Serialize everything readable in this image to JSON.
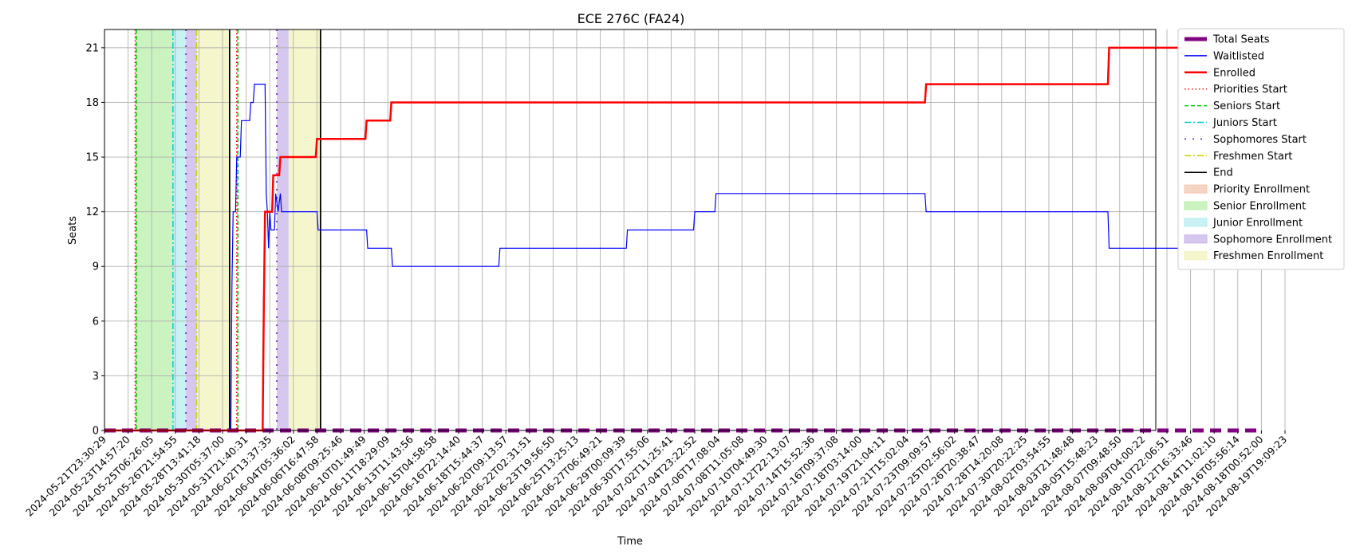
{
  "chart_data": {
    "type": "line",
    "title": "ECE 276C (FA24)",
    "xlabel": "Time",
    "ylabel": "Seats",
    "ylim": [
      0,
      22
    ],
    "yticks": [
      0,
      3,
      6,
      9,
      12,
      15,
      18,
      21
    ],
    "x_tick_labels": [
      "2024-05-21T23:30:29",
      "2024-05-23T14:57:20",
      "2024-05-25T06:26:05",
      "2024-05-26T21:54:55",
      "2024-05-28T13:41:18",
      "2024-05-30T05:37:00",
      "2024-05-31T21:40:31",
      "2024-06-02T13:37:35",
      "2024-06-04T05:36:02",
      "2024-06-06T16:47:58",
      "2024-06-08T09:25:46",
      "2024-06-10T01:49:49",
      "2024-06-11T18:29:09",
      "2024-06-13T11:43:56",
      "2024-06-15T04:58:58",
      "2024-06-16T22:14:40",
      "2024-06-18T15:44:37",
      "2024-06-20T09:13:57",
      "2024-06-22T02:31:51",
      "2024-06-23T19:56:50",
      "2024-06-25T13:25:13",
      "2024-06-27T06:49:21",
      "2024-06-29T00:09:39",
      "2024-06-30T17:55:06",
      "2024-07-02T11:25:41",
      "2024-07-04T23:22:52",
      "2024-07-06T17:08:04",
      "2024-07-08T11:05:08",
      "2024-07-10T04:49:30",
      "2024-07-12T22:13:07",
      "2024-07-14T15:52:36",
      "2024-07-16T09:37:08",
      "2024-07-18T03:14:00",
      "2024-07-19T21:04:11",
      "2024-07-21T15:02:04",
      "2024-07-23T09:09:57",
      "2024-07-25T02:56:02",
      "2024-07-26T20:38:47",
      "2024-07-28T14:20:08",
      "2024-07-30T20:22:25",
      "2024-08-02T03:54:55",
      "2024-08-03T21:48:48",
      "2024-08-05T15:48:23",
      "2024-08-07T09:48:50",
      "2024-08-09T04:00:22",
      "2024-08-10T22:06:51",
      "2024-08-12T16:33:46",
      "2024-08-14T11:02:10",
      "2024-08-16T05:56:14",
      "2024-08-18T00:52:00",
      "2024-08-19T19:09:23"
    ],
    "series": [
      {
        "name": "Total Seats",
        "color": "#800080",
        "style": "dashed-thick",
        "points": [
          [
            0,
            0
          ],
          [
            48.8,
            0
          ]
        ]
      },
      {
        "name": "Waitlisted",
        "color": "#0000ff",
        "style": "solid",
        "points": [
          [
            0,
            0
          ],
          [
            5.35,
            0
          ],
          [
            5.4,
            8
          ],
          [
            5.45,
            12
          ],
          [
            5.55,
            12
          ],
          [
            5.6,
            15
          ],
          [
            5.75,
            15
          ],
          [
            5.8,
            17
          ],
          [
            6.15,
            17
          ],
          [
            6.2,
            18
          ],
          [
            6.3,
            18
          ],
          [
            6.35,
            19
          ],
          [
            6.8,
            19
          ],
          [
            6.85,
            13
          ],
          [
            6.9,
            12
          ],
          [
            6.95,
            10
          ],
          [
            7.0,
            12
          ],
          [
            7.05,
            11
          ],
          [
            7.2,
            11
          ],
          [
            7.25,
            13
          ],
          [
            7.35,
            12
          ],
          [
            7.45,
            13
          ],
          [
            7.5,
            12
          ],
          [
            9.0,
            12
          ],
          [
            9.05,
            11
          ],
          [
            11.1,
            11
          ],
          [
            11.15,
            10
          ],
          [
            12.15,
            10
          ],
          [
            12.2,
            9
          ],
          [
            16.7,
            9
          ],
          [
            16.75,
            10
          ],
          [
            22.1,
            10
          ],
          [
            22.15,
            11
          ],
          [
            24.95,
            11
          ],
          [
            25.0,
            12
          ],
          [
            25.85,
            12
          ],
          [
            25.9,
            13
          ],
          [
            34.75,
            13
          ],
          [
            34.8,
            12
          ],
          [
            42.5,
            12
          ],
          [
            42.55,
            10
          ],
          [
            48.8,
            10
          ]
        ]
      },
      {
        "name": "Enrolled",
        "color": "#ff0000",
        "style": "solid-thick",
        "points": [
          [
            0,
            0
          ],
          [
            6.7,
            0
          ],
          [
            6.75,
            7
          ],
          [
            6.8,
            12
          ],
          [
            7.1,
            12
          ],
          [
            7.15,
            14
          ],
          [
            7.4,
            14
          ],
          [
            7.45,
            15
          ],
          [
            8.95,
            15
          ],
          [
            9.0,
            16
          ],
          [
            11.05,
            16
          ],
          [
            11.1,
            17
          ],
          [
            12.1,
            17
          ],
          [
            12.15,
            18
          ],
          [
            34.75,
            18
          ],
          [
            34.8,
            19
          ],
          [
            42.5,
            19
          ],
          [
            42.55,
            21
          ],
          [
            48.8,
            21
          ]
        ]
      }
    ],
    "vertical_markers": [
      {
        "name": "Priorities Start",
        "color": "#ff0000",
        "style": "dotted",
        "x": 1.3
      },
      {
        "name": "Priorities Start",
        "color": "#ff0000",
        "style": "dotted",
        "x": 5.6
      },
      {
        "name": "Seniors Start",
        "color": "#00cc00",
        "style": "dashed",
        "x": 1.35
      },
      {
        "name": "Seniors Start",
        "color": "#00cc00",
        "style": "dashed",
        "x": 5.65
      },
      {
        "name": "Juniors Start",
        "color": "#00cccc",
        "style": "dashdot",
        "x": 2.9
      },
      {
        "name": "Sophomores Start",
        "color": "#6600cc",
        "style": "loosedot",
        "x": 3.45
      },
      {
        "name": "Sophomores Start",
        "color": "#6600cc",
        "style": "loosedot",
        "x": 7.3
      },
      {
        "name": "Freshmen Start",
        "color": "#cccc00",
        "style": "dashdot",
        "x": 3.9
      },
      {
        "name": "End",
        "color": "#000000",
        "style": "solid",
        "x": 5.3
      },
      {
        "name": "End",
        "color": "#000000",
        "style": "solid",
        "x": 9.15
      }
    ],
    "shaded_regions": [
      {
        "name": "Priority Enrollment",
        "color": "#f4c7b0",
        "from": 1.3,
        "to": 1.35
      },
      {
        "name": "Senior Enrollment",
        "color": "#b8efaa",
        "from": 1.35,
        "to": 2.9
      },
      {
        "name": "Junior Enrollment",
        "color": "#b5ecf0",
        "from": 2.9,
        "to": 3.45
      },
      {
        "name": "Sophomore Enrollment",
        "color": "#c8b4ea",
        "from": 3.45,
        "to": 3.9
      },
      {
        "name": "Freshmen Enrollment",
        "color": "#f3f3bc",
        "from": 3.9,
        "to": 5.3
      },
      {
        "name": "Sophomore Enrollment",
        "color": "#c8b4ea",
        "from": 7.3,
        "to": 7.8
      },
      {
        "name": "Freshmen Enrollment",
        "color": "#f3f3bc",
        "from": 7.8,
        "to": 9.15
      }
    ],
    "legend_position": "outside-right",
    "legend": [
      {
        "label": "Total Seats",
        "kind": "line",
        "color": "#800080",
        "style": "dashed-thick"
      },
      {
        "label": "Waitlisted",
        "kind": "line",
        "color": "#0000ff",
        "style": "solid"
      },
      {
        "label": "Enrolled",
        "kind": "line",
        "color": "#ff0000",
        "style": "solid-thick"
      },
      {
        "label": "Priorities Start",
        "kind": "line",
        "color": "#ff0000",
        "style": "dotted"
      },
      {
        "label": "Seniors Start",
        "kind": "line",
        "color": "#00cc00",
        "style": "dashed"
      },
      {
        "label": "Juniors Start",
        "kind": "line",
        "color": "#00cccc",
        "style": "dashdot"
      },
      {
        "label": "Sophomores Start",
        "kind": "line",
        "color": "#6600cc",
        "style": "loosedot"
      },
      {
        "label": "Freshmen Start",
        "kind": "line",
        "color": "#cccc00",
        "style": "dashdot"
      },
      {
        "label": "End",
        "kind": "line",
        "color": "#000000",
        "style": "solid"
      },
      {
        "label": "Priority Enrollment",
        "kind": "patch",
        "color": "#f4c7b0"
      },
      {
        "label": "Senior Enrollment",
        "kind": "patch",
        "color": "#b8efaa"
      },
      {
        "label": "Junior Enrollment",
        "kind": "patch",
        "color": "#b5ecf0"
      },
      {
        "label": "Sophomore Enrollment",
        "kind": "patch",
        "color": "#c8b4ea"
      },
      {
        "label": "Freshmen Enrollment",
        "kind": "patch",
        "color": "#f3f3bc"
      }
    ]
  }
}
